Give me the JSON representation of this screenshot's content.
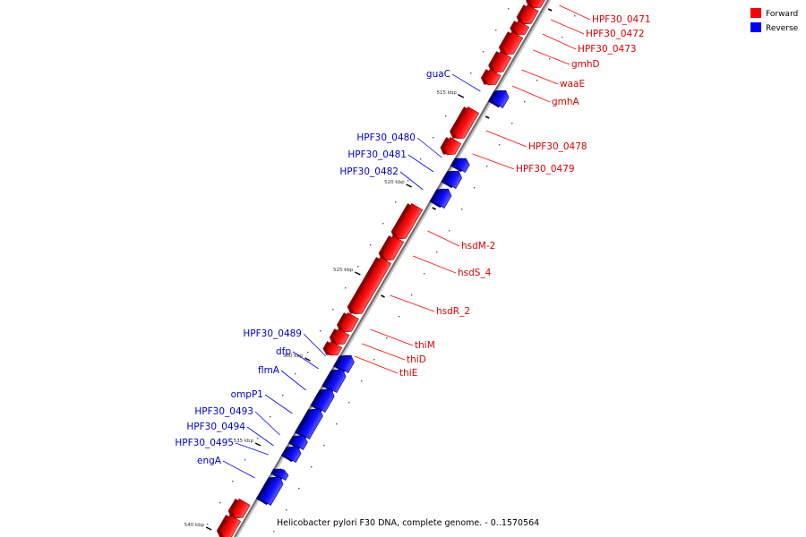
{
  "legend": {
    "forward_label": "Forward",
    "reverse_label": "Reverse",
    "forward_color": "#ff0000",
    "reverse_color": "#0000ff"
  },
  "caption": "Helicobacter pylori F30 DNA, complete genome. - 0..1570564",
  "scale_labels": [
    "515 kbp",
    "520 kbp",
    "525 kbp",
    "530 kbp",
    "535 kbp",
    "540 kbp"
  ],
  "forward_genes": [
    "HPF30_0471",
    "HPF30_0472",
    "HPF30_0473",
    "gmhD",
    "waaE",
    "gmhA",
    "HPF30_0478",
    "HPF30_0479",
    "hsdM-2",
    "hsdS_4",
    "hsdR_2",
    "thiM",
    "thiD",
    "thiE"
  ],
  "reverse_genes": [
    "guaC",
    "HPF30_0480",
    "HPF30_0481",
    "HPF30_0482",
    "HPF30_0489",
    "dfp",
    "flmA",
    "ompP1",
    "HPF30_0493",
    "HPF30_0494",
    "HPF30_0495",
    "engA"
  ]
}
